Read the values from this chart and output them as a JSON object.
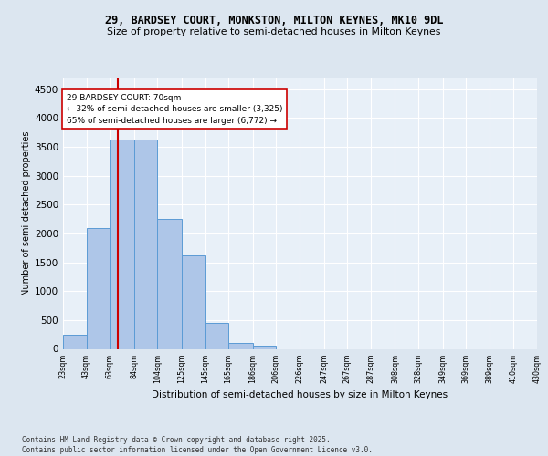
{
  "title_line1": "29, BARDSEY COURT, MONKSTON, MILTON KEYNES, MK10 9DL",
  "title_line2": "Size of property relative to semi-detached houses in Milton Keynes",
  "xlabel": "Distribution of semi-detached houses by size in Milton Keynes",
  "ylabel": "Number of semi-detached properties",
  "bar_edges": [
    23,
    43,
    63,
    84,
    104,
    125,
    145,
    165,
    186,
    206,
    226,
    247,
    267,
    287,
    308,
    328,
    349,
    369,
    389,
    410,
    430
  ],
  "bar_heights": [
    250,
    2100,
    3625,
    3625,
    2250,
    1625,
    450,
    100,
    50,
    0,
    0,
    0,
    0,
    0,
    0,
    0,
    0,
    0,
    0,
    0
  ],
  "bar_color": "#aec6e8",
  "bar_edgecolor": "#5b9bd5",
  "property_size": 70,
  "redline_color": "#cc0000",
  "annotation_text": "29 BARDSEY COURT: 70sqm\n← 32% of semi-detached houses are smaller (3,325)\n65% of semi-detached houses are larger (6,772) →",
  "annotation_box_color": "#ffffff",
  "annotation_box_edgecolor": "#cc0000",
  "ylim": [
    0,
    4700
  ],
  "yticks": [
    0,
    500,
    1000,
    1500,
    2000,
    2500,
    3000,
    3500,
    4000,
    4500
  ],
  "bg_color": "#dce6f0",
  "plot_bg_color": "#e8f0f8",
  "grid_color": "#ffffff",
  "footer": "Contains HM Land Registry data © Crown copyright and database right 2025.\nContains public sector information licensed under the Open Government Licence v3.0.",
  "tick_labels": [
    "23sqm",
    "43sqm",
    "63sqm",
    "84sqm",
    "104sqm",
    "125sqm",
    "145sqm",
    "165sqm",
    "186sqm",
    "206sqm",
    "226sqm",
    "247sqm",
    "267sqm",
    "287sqm",
    "308sqm",
    "328sqm",
    "349sqm",
    "369sqm",
    "389sqm",
    "410sqm",
    "430sqm"
  ]
}
